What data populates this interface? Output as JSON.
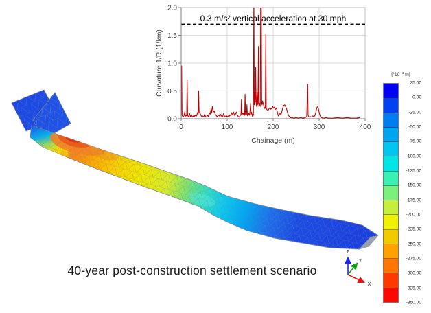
{
  "caption": "40-year post-construction settlement scenario",
  "chart_data": {
    "type": "line",
    "annotation": "0.3 m/s² vertical acceleration at 30 mph",
    "xlabel": "Chainage (m)",
    "ylabel": "Curvature 1/R (1/km)",
    "xlim": [
      0,
      400
    ],
    "ylim": [
      0,
      2
    ],
    "xticks": [
      "0",
      "100",
      "200",
      "300",
      "400"
    ],
    "yticks": [
      "0.0",
      "0.5",
      "1.0",
      "1.5",
      "2.0"
    ],
    "grid": true,
    "legend_position": "none",
    "line_color": "#C00000",
    "threshold": {
      "value": 1.7,
      "style": "dashed",
      "color": "#000000"
    },
    "points": [
      [
        0,
        0.03
      ],
      [
        1,
        0.95
      ],
      [
        2,
        0.06
      ],
      [
        4,
        0.03
      ],
      [
        6,
        0.05
      ],
      [
        8,
        0.13
      ],
      [
        9,
        0.04
      ],
      [
        10,
        0.06
      ],
      [
        12,
        0.05
      ],
      [
        13,
        0.7
      ],
      [
        14,
        0.06
      ],
      [
        16,
        0.03
      ],
      [
        18,
        0.1
      ],
      [
        20,
        0.04
      ],
      [
        22,
        0.08
      ],
      [
        24,
        0.03
      ],
      [
        26,
        0.05
      ],
      [
        28,
        0.03
      ],
      [
        30,
        0.07
      ],
      [
        32,
        0.04
      ],
      [
        34,
        0.06
      ],
      [
        36,
        0.12
      ],
      [
        37,
        0.08
      ],
      [
        38,
        0.5
      ],
      [
        39,
        0.12
      ],
      [
        41,
        0.1
      ],
      [
        43,
        0.06
      ],
      [
        45,
        0.04
      ],
      [
        47,
        0.05
      ],
      [
        49,
        0.03
      ],
      [
        51,
        0.08
      ],
      [
        53,
        0.04
      ],
      [
        55,
        0.03
      ],
      [
        57,
        0.06
      ],
      [
        59,
        0.04
      ],
      [
        61,
        0.1
      ],
      [
        63,
        0.08
      ],
      [
        65,
        0.18
      ],
      [
        66,
        0.1
      ],
      [
        68,
        0.22
      ],
      [
        70,
        0.12
      ],
      [
        72,
        0.14
      ],
      [
        74,
        0.08
      ],
      [
        76,
        0.06
      ],
      [
        78,
        0.04
      ],
      [
        80,
        0.05
      ],
      [
        82,
        0.07
      ],
      [
        84,
        0.04
      ],
      [
        86,
        0.08
      ],
      [
        88,
        0.04
      ],
      [
        90,
        0.03
      ],
      [
        92,
        0.09
      ],
      [
        94,
        0.05
      ],
      [
        96,
        0.03
      ],
      [
        98,
        0.06
      ],
      [
        100,
        0.03
      ],
      [
        102,
        0.05
      ],
      [
        104,
        0.04
      ],
      [
        106,
        0.07
      ],
      [
        108,
        0.05
      ],
      [
        110,
        0.11
      ],
      [
        112,
        0.07
      ],
      [
        114,
        0.12
      ],
      [
        116,
        0.06
      ],
      [
        118,
        0.08
      ],
      [
        120,
        0.12
      ],
      [
        122,
        0.07
      ],
      [
        124,
        0.04
      ],
      [
        126,
        0.03
      ],
      [
        128,
        0.05
      ],
      [
        130,
        0.08
      ],
      [
        131,
        0.35
      ],
      [
        132,
        0.06
      ],
      [
        133,
        0.1
      ],
      [
        135,
        0.08
      ],
      [
        137,
        0.12
      ],
      [
        138,
        0.06
      ],
      [
        139,
        0.44
      ],
      [
        140,
        0.08
      ],
      [
        142,
        0.07
      ],
      [
        143,
        0.25
      ],
      [
        144,
        0.06
      ],
      [
        145,
        0.05
      ],
      [
        147,
        0.1
      ],
      [
        149,
        0.06
      ],
      [
        151,
        0.28
      ],
      [
        152,
        0.08
      ],
      [
        153,
        0.12
      ],
      [
        155,
        0.04
      ],
      [
        156,
        0.08
      ],
      [
        157,
        0.06
      ],
      [
        158,
        2.3
      ],
      [
        159,
        0.25
      ],
      [
        160,
        0.45
      ],
      [
        161,
        0.3
      ],
      [
        162,
        0.92
      ],
      [
        163,
        0.28
      ],
      [
        164,
        0.22
      ],
      [
        165,
        0.48
      ],
      [
        166,
        0.25
      ],
      [
        167,
        0.28
      ],
      [
        168,
        1.3
      ],
      [
        169,
        0.22
      ],
      [
        170,
        0.25
      ],
      [
        171,
        0.28
      ],
      [
        172,
        0.22
      ],
      [
        173,
        2.3
      ],
      [
        174,
        2.3
      ],
      [
        175,
        0.28
      ],
      [
        176,
        0.25
      ],
      [
        177,
        0.32
      ],
      [
        178,
        0.28
      ],
      [
        180,
        0.22
      ],
      [
        182,
        0.18
      ],
      [
        183,
        0.2
      ],
      [
        184,
        1.52
      ],
      [
        185,
        0.18
      ],
      [
        187,
        0.16
      ],
      [
        189,
        0.15
      ],
      [
        191,
        0.18
      ],
      [
        193,
        0.2
      ],
      [
        195,
        0.17
      ],
      [
        197,
        0.19
      ],
      [
        199,
        0.22
      ],
      [
        201,
        0.19
      ],
      [
        203,
        0.21
      ],
      [
        205,
        0.17
      ],
      [
        207,
        0.19
      ],
      [
        209,
        0.13
      ],
      [
        211,
        0.05
      ],
      [
        213,
        0.07
      ],
      [
        215,
        0.1
      ],
      [
        217,
        0.07
      ],
      [
        219,
        0.13
      ],
      [
        221,
        0.2
      ],
      [
        223,
        0.24
      ],
      [
        225,
        0.25
      ],
      [
        227,
        0.22
      ],
      [
        229,
        0.18
      ],
      [
        231,
        0.12
      ],
      [
        233,
        0.07
      ],
      [
        235,
        0.04
      ],
      [
        238,
        0.02
      ],
      [
        241,
        0.02
      ],
      [
        245,
        0.01
      ],
      [
        250,
        0.02
      ],
      [
        255,
        0.01
      ],
      [
        260,
        0.02
      ],
      [
        265,
        0.01
      ],
      [
        270,
        0.02
      ],
      [
        273,
        0.04
      ],
      [
        274,
        0.3
      ],
      [
        275,
        0.62
      ],
      [
        276,
        0.06
      ],
      [
        278,
        0.03
      ],
      [
        280,
        0.04
      ],
      [
        283,
        0.03
      ],
      [
        286,
        0.05
      ],
      [
        289,
        0.04
      ],
      [
        291,
        0.06
      ],
      [
        293,
        0.12
      ],
      [
        295,
        0.2
      ],
      [
        297,
        0.22
      ],
      [
        299,
        0.16
      ],
      [
        301,
        0.08
      ],
      [
        303,
        0.04
      ],
      [
        305,
        0.02
      ],
      [
        310,
        0.01
      ],
      [
        315,
        0.02
      ],
      [
        320,
        0.01
      ],
      [
        330,
        0.01
      ],
      [
        340,
        0.02
      ],
      [
        350,
        0.01
      ],
      [
        360,
        0.02
      ],
      [
        370,
        0.01
      ],
      [
        380,
        0.01
      ],
      [
        388,
        0.02
      ]
    ]
  },
  "legend": {
    "unit": "[*10⁻³ m]",
    "labels": [
      "25.00",
      "0.00",
      "-25.00",
      "-50.00",
      "-75.00",
      "-100.00",
      "-125.00",
      "-150.00",
      "-175.00",
      "-200.00",
      "-225.00",
      "-250.00",
      "-275.00",
      "-300.00",
      "-325.00",
      "-350.00"
    ],
    "colors": [
      "#0000F5",
      "#0042F2",
      "#007DF0",
      "#00A5F0",
      "#00C6F0",
      "#00E6E4",
      "#3AF0B2",
      "#7CF07C",
      "#C6EE3C",
      "#F0F000",
      "#F2CA00",
      "#FFA200",
      "#FF7600",
      "#FF3A00",
      "#FF0600"
    ]
  },
  "mesh": {
    "wing_color": "#1C4AE6",
    "wing2_color": "#1E52EA",
    "edge_color": "#76838F",
    "end_cap_color": "#98A2AC",
    "band_stops": [
      [
        0.0,
        "#2355E2"
      ],
      [
        0.055,
        "#00AEF0"
      ],
      [
        0.085,
        "#7CD648"
      ],
      [
        0.105,
        "#E8A020"
      ],
      [
        0.13,
        "#F58518"
      ],
      [
        0.19,
        "#FCA800"
      ],
      [
        0.25,
        "#F7CE00"
      ],
      [
        0.32,
        "#F0E400"
      ],
      [
        0.4,
        "#D7EA28"
      ],
      [
        0.455,
        "#7FE070"
      ],
      [
        0.51,
        "#35DDC0"
      ],
      [
        0.565,
        "#0FC8EE"
      ],
      [
        0.63,
        "#00A6F2"
      ],
      [
        0.7,
        "#1E6EEC"
      ],
      [
        0.78,
        "#1C4BE4"
      ],
      [
        1.0,
        "#1B3FE0"
      ]
    ],
    "left_face_stops": [
      [
        0.0,
        "#1E4AE6"
      ],
      [
        0.35,
        "#00B2F0"
      ],
      [
        0.62,
        "#BFE33C"
      ],
      [
        0.78,
        "#FFD800"
      ],
      [
        1.0,
        "#FFB400"
      ]
    ],
    "hotspot_colors": [
      "#F58220",
      "#EE5A14",
      "#D8381C"
    ],
    "secondary_spot_color": "#F09020",
    "cyan_patch_color": "#55E8E0"
  },
  "triad": {
    "x_label": "X",
    "y_label": "Y",
    "z_label": "Z",
    "x_color": "#E81212",
    "y_color": "#12A012",
    "z_color": "#2222E8"
  }
}
